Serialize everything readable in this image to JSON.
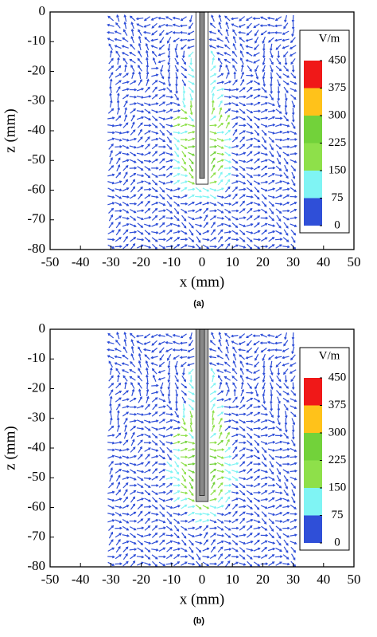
{
  "chart_data": [
    {
      "type": "quiver",
      "caption": "(a)",
      "xlabel": "x (mm)",
      "ylabel": "z (mm)",
      "xlim": [
        -50,
        50
      ],
      "xticks": [
        -50,
        -40,
        -30,
        -20,
        -10,
        0,
        10,
        20,
        30,
        40,
        50
      ],
      "ylim": [
        -80,
        0
      ],
      "yticks": [
        -80,
        -70,
        -60,
        -50,
        -40,
        -30,
        -20,
        -10,
        0
      ],
      "colorbar": {
        "title": "V/m",
        "ticks": [
          0,
          75,
          150,
          225,
          300,
          375,
          450
        ],
        "colors": [
          "#2f4fd8",
          "#7ff4f4",
          "#8ee04a",
          "#72d23a",
          "#ffc21a",
          "#f01818"
        ]
      }
    },
    {
      "type": "quiver",
      "caption": "(b)",
      "xlabel": "x (mm)",
      "ylabel": "z (mm)",
      "xlim": [
        -50,
        50
      ],
      "xticks": [
        -50,
        -40,
        -30,
        -20,
        -10,
        0,
        10,
        20,
        30,
        40,
        50
      ],
      "ylim": [
        -80,
        0
      ],
      "yticks": [
        -80,
        -70,
        -60,
        -50,
        -40,
        -30,
        -20,
        -10,
        0
      ],
      "colorbar": {
        "title": "V/m",
        "ticks": [
          0,
          75,
          150,
          225,
          300,
          375,
          450
        ],
        "colors": [
          "#2f4fd8",
          "#7ff4f4",
          "#8ee04a",
          "#72d23a",
          "#ffc21a",
          "#f01818"
        ]
      }
    }
  ]
}
